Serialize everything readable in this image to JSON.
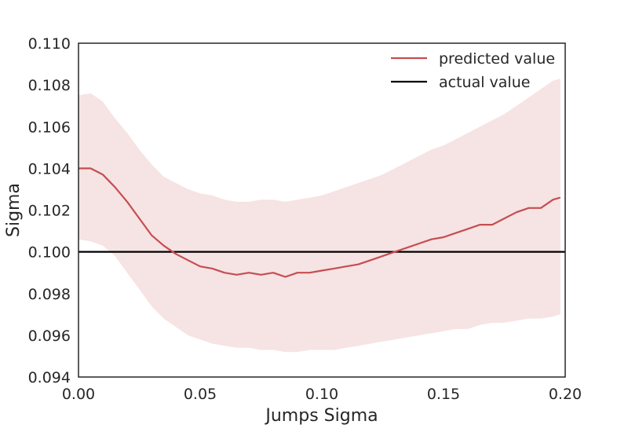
{
  "chart_data": {
    "type": "line",
    "title": "",
    "xlabel": "Jumps Sigma",
    "ylabel": "Sigma",
    "xlim": [
      0.0,
      0.2
    ],
    "ylim": [
      0.094,
      0.11
    ],
    "x_ticks": [
      0.0,
      0.05,
      0.1,
      0.15,
      0.2
    ],
    "x_tick_labels": [
      "0.00",
      "0.05",
      "0.10",
      "0.15",
      "0.20"
    ],
    "y_ticks": [
      0.094,
      0.096,
      0.098,
      0.1,
      0.102,
      0.104,
      0.106,
      0.108,
      0.11
    ],
    "y_tick_labels": [
      "0.094",
      "0.096",
      "0.098",
      "0.100",
      "0.102",
      "0.104",
      "0.106",
      "0.108",
      "0.110"
    ],
    "grid": false,
    "legend_position": "top-right",
    "series": [
      {
        "name": "predicted value",
        "color": "#c44e52",
        "x": [
          0.0,
          0.005,
          0.01,
          0.015,
          0.02,
          0.025,
          0.03,
          0.035,
          0.04,
          0.045,
          0.05,
          0.055,
          0.06,
          0.065,
          0.07,
          0.075,
          0.08,
          0.085,
          0.09,
          0.095,
          0.1,
          0.105,
          0.11,
          0.115,
          0.12,
          0.125,
          0.13,
          0.135,
          0.14,
          0.145,
          0.15,
          0.155,
          0.16,
          0.165,
          0.17,
          0.175,
          0.18,
          0.185,
          0.19,
          0.195,
          0.198
        ],
        "y": [
          0.104,
          0.104,
          0.1037,
          0.1031,
          0.1024,
          0.1016,
          0.1008,
          0.1003,
          0.0999,
          0.0996,
          0.0993,
          0.0992,
          0.099,
          0.0989,
          0.099,
          0.0989,
          0.099,
          0.0988,
          0.099,
          0.099,
          0.0991,
          0.0992,
          0.0993,
          0.0994,
          0.0996,
          0.0998,
          0.1,
          0.1002,
          0.1004,
          0.1006,
          0.1007,
          0.1009,
          0.1011,
          0.1013,
          0.1013,
          0.1016,
          0.1019,
          0.1021,
          0.1021,
          0.1025,
          0.1026
        ],
        "band_lower": [
          0.1006,
          0.1005,
          0.1003,
          0.0998,
          0.099,
          0.0982,
          0.0974,
          0.0968,
          0.0964,
          0.096,
          0.0958,
          0.0956,
          0.0955,
          0.0954,
          0.0954,
          0.0953,
          0.0953,
          0.0952,
          0.0952,
          0.0953,
          0.0953,
          0.0953,
          0.0954,
          0.0955,
          0.0956,
          0.0957,
          0.0958,
          0.0959,
          0.096,
          0.0961,
          0.0962,
          0.0963,
          0.0963,
          0.0965,
          0.0966,
          0.0966,
          0.0967,
          0.0968,
          0.0968,
          0.0969,
          0.097
        ],
        "band_upper": [
          0.1075,
          0.1076,
          0.1072,
          0.1064,
          0.1057,
          0.1049,
          0.1042,
          0.1036,
          0.1033,
          0.103,
          0.1028,
          0.1027,
          0.1025,
          0.1024,
          0.1024,
          0.1025,
          0.1025,
          0.1024,
          0.1025,
          0.1026,
          0.1027,
          0.1029,
          0.1031,
          0.1033,
          0.1035,
          0.1037,
          0.104,
          0.1043,
          0.1046,
          0.1049,
          0.1051,
          0.1054,
          0.1057,
          0.106,
          0.1063,
          0.1066,
          0.107,
          0.1074,
          0.1078,
          0.1082,
          0.1083
        ],
        "band_color": "#f6e3e3"
      },
      {
        "name": "actual value",
        "color": "#000000",
        "x": [
          0.0,
          0.2
        ],
        "y": [
          0.1,
          0.1
        ]
      }
    ]
  }
}
